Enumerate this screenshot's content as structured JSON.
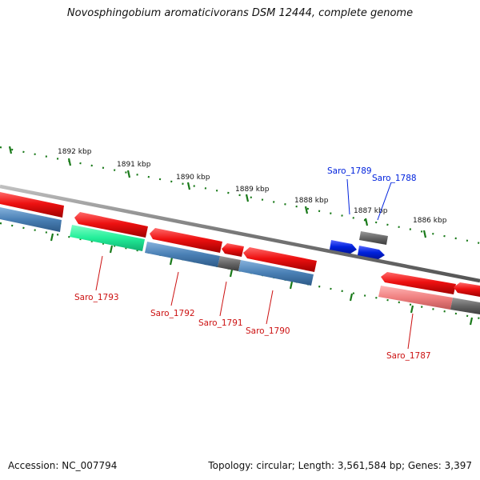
{
  "title": "Novosphingobium aromaticivorans DSM 12444, complete genome",
  "footer": {
    "accession": "Accession: NC_007794",
    "topology": "Topology: circular; Length: 3,561,584 bp; Genes: 3,397"
  },
  "scale_labels": [
    "1892 kbp",
    "1891 kbp",
    "1890 kbp",
    "1889 kbp",
    "1888 kbp",
    "1887 kbp",
    "1886 kbp"
  ],
  "gene_labels": {
    "top": [
      "Saro_1789",
      "Saro_1788"
    ],
    "bottom": [
      "Saro_1793",
      "Saro_1792",
      "Saro_1791",
      "Saro_1790",
      "Saro_1787"
    ]
  },
  "colors": {
    "forward_gene": "#ee1111",
    "reverse_gene": "#4a80b5",
    "highlight_top": "#0022dd",
    "highlight_bottom_label": "#cc1111",
    "green_gene": "#22ee99",
    "pink_gene": "#f08080",
    "grey_gene": "#666666",
    "tick": "#1a7a1a"
  }
}
